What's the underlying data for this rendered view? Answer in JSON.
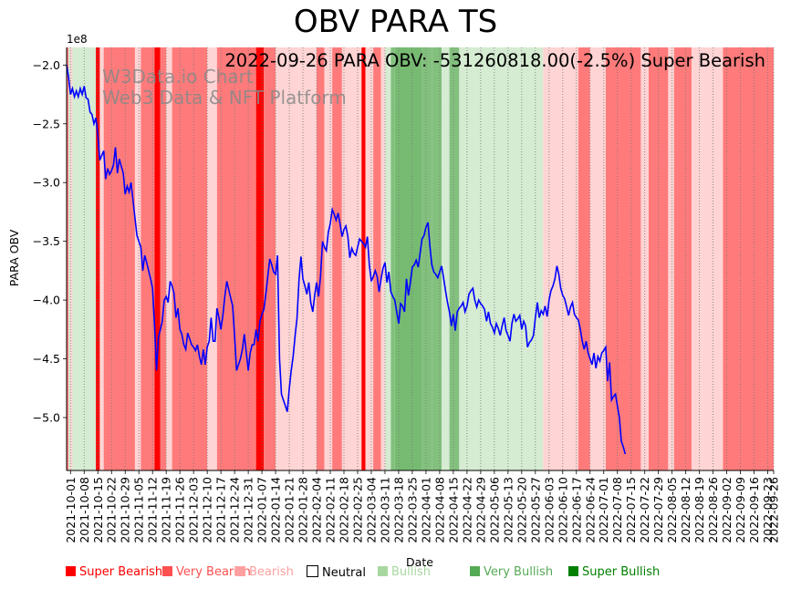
{
  "chart_data": {
    "type": "line",
    "title": "OBV PARA TS",
    "annotation": "2022-09-26 PARA OBV: -531260818.00(-2.5%) Super Bearish",
    "watermark": [
      "W3Data.io Chart",
      "Web3 Data & NFT Platform"
    ],
    "xlabel": "Date",
    "ylabel": "PARA OBV",
    "y_offset_label": "1e8",
    "ylim": [
      -5.45,
      -1.85
    ],
    "yticks": [
      -2.0,
      -2.5,
      -3.0,
      -3.5,
      -4.0,
      -4.5,
      -5.0
    ],
    "ytick_labels": [
      "−2.0",
      "−2.5",
      "−3.0",
      "−3.5",
      "−4.0",
      "−4.5",
      "−5.0"
    ],
    "xlim": [
      "2021-09-29",
      "2022-09-26"
    ],
    "xtick_labels": [
      "2021-10-01",
      "2021-10-08",
      "2021-10-15",
      "2021-10-22",
      "2021-10-29",
      "2021-11-05",
      "2021-11-12",
      "2021-11-19",
      "2021-11-26",
      "2021-12-03",
      "2021-12-10",
      "2021-12-17",
      "2021-12-24",
      "2021-12-31",
      "2022-01-07",
      "2022-01-14",
      "2022-01-21",
      "2022-01-28",
      "2022-02-04",
      "2022-02-11",
      "2022-02-18",
      "2022-02-25",
      "2022-03-04",
      "2022-03-11",
      "2022-03-18",
      "2022-03-25",
      "2022-04-01",
      "2022-04-08",
      "2022-04-15",
      "2022-04-22",
      "2022-04-29",
      "2022-05-06",
      "2022-05-13",
      "2022-05-20",
      "2022-05-27",
      "2022-06-03",
      "2022-06-10",
      "2022-06-17",
      "2022-06-24",
      "2022-07-01",
      "2022-07-08",
      "2022-07-15",
      "2022-07-22",
      "2022-07-29",
      "2022-08-05",
      "2022-08-12",
      "2022-08-19",
      "2022-08-26",
      "2022-09-02",
      "2022-09-09",
      "2022-09-16",
      "2022-09-23",
      "2022-09-26"
    ],
    "grid": "vertical dotted",
    "legend_placement": "below plot",
    "legend": [
      {
        "label": "Super Bearish",
        "color": "#ff0000"
      },
      {
        "label": "Very Bearish",
        "color": "#ff5050"
      },
      {
        "label": "Bearish",
        "color": "#ffa0a0"
      },
      {
        "label": "Neutral",
        "color": "#ffffff"
      },
      {
        "label": "Bullish",
        "color": "#a8d8a0"
      },
      {
        "label": "Very Bullish",
        "color": "#55aa55"
      },
      {
        "label": "Super Bullish",
        "color": "#008000"
      }
    ],
    "line_color": "#0000ff",
    "series": [
      {
        "start": "2021-09-29",
        "values": [
          -2.0,
          -2.1,
          -2.25,
          -2.2,
          -2.27,
          -2.22,
          -2.27,
          -2.2,
          -2.25,
          -2.18,
          -2.28,
          -2.29,
          -2.4,
          -2.42,
          -2.5,
          -2.45,
          -2.6,
          -2.81,
          -2.77,
          -2.73,
          -2.97,
          -2.88,
          -2.93,
          -2.9,
          -2.85,
          -2.7,
          -2.92,
          -2.8,
          -2.86,
          -2.92,
          -3.1,
          -3.03,
          -3.08,
          -3.0,
          -3.15,
          -3.3,
          -3.45,
          -3.5,
          -3.55,
          -3.75,
          -3.62,
          -3.68,
          -3.75,
          -3.82,
          -3.9,
          -4.2,
          -4.6,
          -4.32,
          -4.25,
          -4.18,
          -4.0,
          -3.97,
          -4.02,
          -3.84,
          -3.88,
          -3.94,
          -4.15,
          -4.07,
          -4.25,
          -4.29,
          -4.38,
          -4.42,
          -4.28,
          -4.33,
          -4.38,
          -4.4,
          -4.43,
          -4.38,
          -4.48,
          -4.55,
          -4.42,
          -4.55,
          -4.4,
          -4.35,
          -4.15,
          -4.35,
          -4.35,
          -4.07,
          -4.15,
          -4.25,
          -4.13,
          -3.97,
          -3.84,
          -3.91,
          -3.98,
          -4.05,
          -4.3,
          -4.6,
          -4.55,
          -4.5,
          -4.42,
          -4.29,
          -4.45,
          -4.6,
          -4.45,
          -4.38,
          -4.38,
          -4.25,
          -4.35,
          -4.18,
          -4.12,
          -4.08,
          -3.95,
          -3.8,
          -3.65,
          -3.7,
          -3.76,
          -3.78,
          -3.62,
          -4.5,
          -4.8,
          -4.85,
          -4.9,
          -4.95,
          -4.75,
          -4.6,
          -4.48,
          -4.3,
          -4.15,
          -3.82,
          -3.63,
          -3.82,
          -3.88,
          -3.95,
          -3.85,
          -4.02,
          -4.1,
          -3.96,
          -3.85,
          -3.97,
          -3.8,
          -3.5,
          -3.55,
          -3.58,
          -3.42,
          -3.35,
          -3.23,
          -3.27,
          -3.32,
          -3.26,
          -3.35,
          -3.46,
          -3.4,
          -3.37,
          -3.46,
          -3.64,
          -3.56,
          -3.6,
          -3.62,
          -3.55,
          -3.48,
          -3.5,
          -3.52,
          -3.55,
          -3.46,
          -3.7,
          -3.84,
          -3.8,
          -3.75,
          -3.8,
          -3.93,
          -3.82,
          -3.73,
          -3.68,
          -3.85,
          -3.76,
          -3.93,
          -3.97,
          -4.0,
          -4.1,
          -4.2,
          -4.03,
          -4.05,
          -4.1,
          -3.82,
          -3.96,
          -3.85,
          -3.72,
          -3.7,
          -3.66,
          -3.72,
          -3.6,
          -3.48,
          -3.45,
          -3.38,
          -3.34,
          -3.54,
          -3.7,
          -3.76,
          -3.78,
          -3.81,
          -3.76,
          -3.71,
          -3.81,
          -3.92,
          -4.02,
          -4.1,
          -4.22,
          -4.12,
          -4.26,
          -4.1,
          -4.07,
          -4.05,
          -4.02,
          -4.1,
          -4.05,
          -3.95,
          -3.92,
          -3.9,
          -4.0,
          -4.06,
          -4.0,
          -4.03,
          -4.05,
          -4.08,
          -4.18,
          -4.1,
          -4.2,
          -4.23,
          -4.28,
          -4.2,
          -4.24,
          -4.3,
          -4.22,
          -4.15,
          -4.26,
          -4.3,
          -4.35,
          -4.2,
          -4.12,
          -4.18,
          -4.16,
          -4.13,
          -4.25,
          -4.18,
          -4.22,
          -4.4,
          -4.36,
          -4.34,
          -4.3,
          -4.15,
          -4.02,
          -4.15,
          -4.09,
          -4.12,
          -4.05,
          -4.14,
          -4.0,
          -3.92,
          -3.88,
          -3.82,
          -3.71,
          -3.78,
          -3.9,
          -3.96,
          -3.99,
          -4.06,
          -4.13,
          -4.06,
          -4.02,
          -4.12,
          -4.15,
          -4.17,
          -4.25,
          -4.35,
          -4.42,
          -4.35,
          -4.45,
          -4.5,
          -4.55,
          -4.45,
          -4.58,
          -4.48,
          -4.52,
          -4.45,
          -4.43,
          -4.4,
          -4.69,
          -4.53,
          -4.85,
          -4.82,
          -4.8,
          -4.9,
          -5.0,
          -5.2,
          -5.25,
          -5.31
        ]
      }
    ],
    "background_regimes": [
      {
        "from": "2021-09-29",
        "to": "2021-09-30",
        "regime": "Very Bearish"
      },
      {
        "from": "2021-09-30",
        "to": "2021-10-01",
        "regime": "Bullish"
      },
      {
        "from": "2021-10-01",
        "to": "2021-10-02",
        "regime": "Bearish"
      },
      {
        "from": "2021-10-02",
        "to": "2021-10-14",
        "regime": "Bullish"
      },
      {
        "from": "2021-10-14",
        "to": "2021-10-16",
        "regime": "Super Bearish"
      },
      {
        "from": "2021-10-16",
        "to": "2021-10-18",
        "regime": "Bearish"
      },
      {
        "from": "2021-10-18",
        "to": "2021-11-03",
        "regime": "Very Bearish"
      },
      {
        "from": "2021-11-03",
        "to": "2021-11-06",
        "regime": "Bearish"
      },
      {
        "from": "2021-11-06",
        "to": "2021-11-13",
        "regime": "Very Bearish"
      },
      {
        "from": "2021-11-13",
        "to": "2021-11-16",
        "regime": "Super Bearish"
      },
      {
        "from": "2021-11-16",
        "to": "2021-11-19",
        "regime": "Very Bearish"
      },
      {
        "from": "2021-11-19",
        "to": "2021-11-22",
        "regime": "Bearish"
      },
      {
        "from": "2021-11-22",
        "to": "2021-12-10",
        "regime": "Very Bearish"
      },
      {
        "from": "2021-12-10",
        "to": "2021-12-15",
        "regime": "Bearish"
      },
      {
        "from": "2021-12-15",
        "to": "2022-01-04",
        "regime": "Very Bearish"
      },
      {
        "from": "2022-01-04",
        "to": "2022-01-08",
        "regime": "Super Bearish"
      },
      {
        "from": "2022-01-08",
        "to": "2022-01-14",
        "regime": "Very Bearish"
      },
      {
        "from": "2022-01-14",
        "to": "2022-01-20",
        "regime": "Bearish"
      },
      {
        "from": "2022-01-20",
        "to": "2022-01-26",
        "regime": "Bearish"
      },
      {
        "from": "2022-01-26",
        "to": "2022-02-04",
        "regime": "Bearish"
      },
      {
        "from": "2022-02-04",
        "to": "2022-02-08",
        "regime": "Very Bearish"
      },
      {
        "from": "2022-02-08",
        "to": "2022-02-12",
        "regime": "Bearish"
      },
      {
        "from": "2022-02-12",
        "to": "2022-02-17",
        "regime": "Very Bearish"
      },
      {
        "from": "2022-02-17",
        "to": "2022-02-27",
        "regime": "Bearish"
      },
      {
        "from": "2022-02-27",
        "to": "2022-03-01",
        "regime": "Super Bearish"
      },
      {
        "from": "2022-03-01",
        "to": "2022-03-05",
        "regime": "Bearish"
      },
      {
        "from": "2022-03-05",
        "to": "2022-03-09",
        "regime": "Very Bearish"
      },
      {
        "from": "2022-03-09",
        "to": "2022-03-11",
        "regime": "Bearish"
      },
      {
        "from": "2022-03-11",
        "to": "2022-03-14",
        "regime": "Bullish"
      },
      {
        "from": "2022-03-14",
        "to": "2022-03-16",
        "regime": "Very Bullish"
      },
      {
        "from": "2022-03-16",
        "to": "2022-03-30",
        "regime": "Super Bullish"
      },
      {
        "from": "2022-03-30",
        "to": "2022-04-04",
        "regime": "Very Bullish"
      },
      {
        "from": "2022-04-04",
        "to": "2022-04-09",
        "regime": "Very Bullish"
      },
      {
        "from": "2022-04-09",
        "to": "2022-04-13",
        "regime": "Bullish"
      },
      {
        "from": "2022-04-13",
        "to": "2022-04-18",
        "regime": "Very Bullish"
      },
      {
        "from": "2022-04-18",
        "to": "2022-05-31",
        "regime": "Bullish"
      },
      {
        "from": "2022-05-31",
        "to": "2022-06-18",
        "regime": "Bearish"
      },
      {
        "from": "2022-06-18",
        "to": "2022-06-24",
        "regime": "Very Bearish"
      },
      {
        "from": "2022-06-24",
        "to": "2022-07-02",
        "regime": "Bearish"
      },
      {
        "from": "2022-07-02",
        "to": "2022-07-20",
        "regime": "Very Bearish"
      },
      {
        "from": "2022-07-20",
        "to": "2022-07-24",
        "regime": "Bearish"
      },
      {
        "from": "2022-07-24",
        "to": "2022-08-03",
        "regime": "Very Bearish"
      },
      {
        "from": "2022-08-03",
        "to": "2022-08-06",
        "regime": "Bearish"
      },
      {
        "from": "2022-08-06",
        "to": "2022-08-15",
        "regime": "Very Bearish"
      },
      {
        "from": "2022-08-15",
        "to": "2022-08-31",
        "regime": "Bearish"
      },
      {
        "from": "2022-08-31",
        "to": "2022-09-26",
        "regime": "Very Bearish"
      }
    ]
  }
}
